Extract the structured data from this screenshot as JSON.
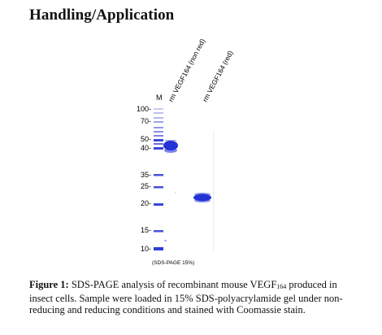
{
  "page": {
    "section_title": "Handling/Application"
  },
  "figure": {
    "lane_labels": {
      "marker": "M",
      "lane1": "rm VEGF164 (non red)",
      "lane2": "rm VEGF164 (red)"
    },
    "mw_labels": [
      "100-",
      "70-",
      "50-",
      "40-",
      "35-",
      "25-",
      "20-",
      "15-",
      "10-"
    ],
    "gel_note": "(SDS-PAGE 15%)",
    "band_color": "#2433d6",
    "faint_band_color": "#b8bde8"
  },
  "caption": {
    "label": "Figure 1:",
    "text_before_sub": " SDS-PAGE analysis of recombinant mouse VEGF",
    "subscript": "164",
    "text_after_sub": " produced in insect cells. Sample were loaded in 15% SDS-polyacrylamide gel under non-reducing and reducing conditions and stained with Coomassie stain."
  }
}
